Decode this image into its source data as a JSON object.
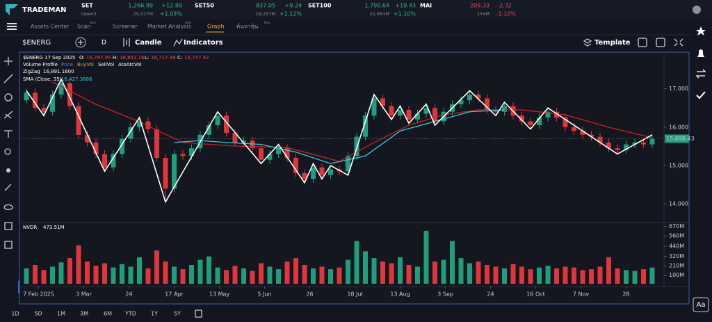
{
  "header": {
    "logo": "TRADEMAN",
    "tickers": [
      {
        "name": "SET",
        "value": "1,266.99",
        "change": "+12.89",
        "status": "Open2",
        "volume": "25,017M",
        "pct": "+1.03%"
      },
      {
        "name": "SET50",
        "value": "837.05",
        "change": "+9.24",
        "volume": "19,257M",
        "pct": "+1.12%"
      },
      {
        "name": "SET100",
        "value": "1,790.64",
        "change": "+19.43",
        "volume": "21,651M",
        "pct": "+1.10%"
      },
      {
        "name": "MAI",
        "value": "209.33",
        "change": "-2.32",
        "volume": "154M",
        "pct": "-1.10%"
      }
    ]
  },
  "nav": [
    {
      "label": "Assets Center"
    },
    {
      "label": "Scan",
      "badge": "New"
    },
    {
      "label": "Screener"
    },
    {
      "label": "Market Analysis",
      "badge": "New"
    },
    {
      "label": "Graph"
    },
    {
      "label": "ค้นหาหุ้น",
      "badge": "New"
    }
  ],
  "toolbar": {
    "symbol": "$ENERG",
    "interval": "D",
    "chart_type": "Candle",
    "indicators": "Indicators",
    "template": "Template"
  },
  "legend": {
    "symbol": "$ENERG",
    "date": "17 Sep 2025",
    "o_label": "O:",
    "o": "16,787.95",
    "h_label": "H:",
    "h": "16,891.16",
    "l_label": "L:",
    "l": "16,717.49",
    "c_label": "C:",
    "c": "16,747.42",
    "volume_profile": "Volume Profile",
    "price": "Price",
    "buy": "BuyVol",
    "sell": "SellVol",
    "atoatc": "AtoAtcVol",
    "zigzag": "ZigZag",
    "zigzag_value": "16,891.1600",
    "sma": "SMA (Close, 35)",
    "sma_value": "16,427.3686"
  },
  "chart_data": {
    "type": "candlestick",
    "up_color": "#1f9e7e",
    "down_color": "#e0353b",
    "xlim": [
      0,
      72
    ],
    "ylim": [
      13550,
      17900
    ],
    "yticks": [
      {
        "value": 14000,
        "label": "14,000"
      },
      {
        "value": 15000,
        "label": "15,000"
      },
      {
        "value": 16000,
        "label": "16,000"
      },
      {
        "value": 17000,
        "label": "17,000"
      }
    ],
    "xticks": [
      {
        "value": 1.4,
        "label": "7 Feb 2025"
      },
      {
        "value": 6.6,
        "label": "3 Mar"
      },
      {
        "value": 11.8,
        "label": "24"
      },
      {
        "value": 17,
        "label": "17 Apr"
      },
      {
        "value": 22.2,
        "label": "13 May"
      },
      {
        "value": 27.4,
        "label": "5 Jun"
      },
      {
        "value": 32.6,
        "label": "26"
      },
      {
        "value": 37.8,
        "label": "18 Jul"
      },
      {
        "value": 43,
        "label": "13 Aug"
      },
      {
        "value": 48.2,
        "label": "3 Sep"
      },
      {
        "value": 53.4,
        "label": "24"
      },
      {
        "value": 58.6,
        "label": "16 Oct"
      },
      {
        "value": 63.8,
        "label": "7 Nov"
      },
      {
        "value": 69,
        "label": "28"
      }
    ],
    "open": [
      16700,
      16900,
      16500,
      16400,
      16850,
      17150,
      16550,
      15800,
      15600,
      15300,
      14950,
      15300,
      15700,
      16000,
      16150,
      15950,
      15200,
      14400,
      15300,
      15250,
      15450,
      15800,
      16050,
      16300,
      15850,
      15600,
      15650,
      15450,
      15150,
      15300,
      15450,
      15200,
      14800,
      14650,
      14950,
      14750,
      14900,
      14850,
      15250,
      15750,
      16300,
      16750,
      16550,
      16300,
      16450,
      16200,
      16350,
      16500,
      16150,
      16400,
      16600,
      16700,
      16850,
      16750,
      16450,
      16400,
      16550,
      16300,
      16150,
      16050,
      16250,
      16400,
      16250,
      16000,
      15900,
      15800,
      15750,
      15600,
      15450,
      15400,
      15550,
      15600,
      15550
    ],
    "high": [
      17000,
      17000,
      16600,
      16950,
      17250,
      17250,
      16650,
      15900,
      15700,
      15400,
      15400,
      15800,
      16100,
      16250,
      16250,
      16050,
      15300,
      15400,
      15400,
      15550,
      15900,
      16150,
      16400,
      16400,
      15950,
      15750,
      15750,
      15550,
      15400,
      15550,
      15550,
      15300,
      14900,
      15050,
      15050,
      15000,
      15000,
      15350,
      15850,
      16400,
      16850,
      16850,
      16650,
      16550,
      16550,
      16450,
      16600,
      16600,
      16500,
      16700,
      16800,
      16950,
      16950,
      16850,
      16550,
      16650,
      16650,
      16400,
      16250,
      16350,
      16500,
      16500,
      16350,
      16100,
      16000,
      15900,
      15850,
      15700,
      15550,
      15650,
      15700,
      15700,
      15800
    ],
    "low": [
      16600,
      16400,
      16300,
      16300,
      16750,
      16450,
      15700,
      15500,
      15200,
      14850,
      14850,
      15200,
      15600,
      15900,
      15850,
      15100,
      14050,
      14300,
      15150,
      15150,
      15350,
      15700,
      15950,
      15750,
      15500,
      15500,
      15350,
      15050,
      15050,
      15200,
      15100,
      14700,
      14550,
      14550,
      14650,
      14650,
      14750,
      14750,
      15150,
      15650,
      16200,
      16450,
      16200,
      16200,
      16100,
      16100,
      16250,
      16050,
      16050,
      16300,
      16500,
      16600,
      16650,
      16350,
      16300,
      16300,
      16200,
      16050,
      15950,
      15950,
      16150,
      16150,
      15900,
      15800,
      15700,
      15650,
      15500,
      15350,
      15300,
      15300,
      15450,
      15450,
      15450
    ],
    "close": [
      16900,
      16500,
      16400,
      16850,
      17150,
      16550,
      15800,
      15600,
      15300,
      14950,
      15300,
      15700,
      16000,
      16150,
      15950,
      15200,
      14400,
      15300,
      15250,
      15450,
      15800,
      16050,
      16300,
      15850,
      15600,
      15650,
      15450,
      15150,
      15300,
      15450,
      15200,
      14800,
      14650,
      14950,
      14750,
      14900,
      14850,
      15250,
      15750,
      16300,
      16750,
      16550,
      16300,
      16450,
      16200,
      16350,
      16500,
      16150,
      16400,
      16600,
      16700,
      16850,
      16750,
      16450,
      16400,
      16550,
      16300,
      16150,
      16050,
      16250,
      16400,
      16250,
      16000,
      15900,
      15800,
      15750,
      15600,
      15450,
      15400,
      15550,
      15600,
      15550,
      15698.43
    ],
    "last_label": "15,698.43",
    "lines": [
      {
        "color": "#d11f25",
        "x": [
          3,
          8,
          13,
          18,
          24,
          30,
          36,
          40,
          44,
          48,
          52,
          57,
          62,
          67,
          72
        ],
        "values": [
          17175,
          16595,
          16142,
          15598,
          15508,
          15470,
          15108,
          15600,
          16050,
          16323,
          16450,
          16450,
          16323,
          15997,
          15725
        ]
      },
      {
        "color": "#26d0df",
        "x": [
          17,
          20,
          23,
          27,
          31,
          35,
          39,
          43,
          47,
          51,
          55
        ],
        "values": [
          15600,
          15650,
          15600,
          15550,
          15350,
          15050,
          15250,
          15900,
          16150,
          16400,
          16450
        ]
      },
      {
        "color": "#ffffff",
        "x": [
          0,
          2,
          4,
          9,
          13,
          16,
          22,
          27,
          29,
          32,
          33,
          34,
          35,
          37,
          40,
          42,
          43,
          44,
          46,
          47,
          51,
          54,
          55,
          58,
          60,
          68,
          72
        ],
        "values": [
          16950,
          16300,
          17250,
          14850,
          16250,
          14050,
          16400,
          15050,
          15550,
          14550,
          15050,
          14650,
          15000,
          14750,
          16850,
          16200,
          16550,
          16100,
          16600,
          16050,
          16950,
          16300,
          16650,
          15950,
          16500,
          15300,
          15800
        ]
      }
    ],
    "volume": {
      "title": "NVDR",
      "last": "473.51M",
      "ylim": [
        0,
        700
      ],
      "yticks": [
        {
          "value": 100,
          "label": "100M"
        },
        {
          "value": 210,
          "label": "210M"
        },
        {
          "value": 320,
          "label": "320M"
        },
        {
          "value": 440,
          "label": "440M"
        },
        {
          "value": 560,
          "label": "560M"
        },
        {
          "value": 670,
          "label": "670M"
        }
      ],
      "values": [
        180,
        220,
        160,
        200,
        250,
        300,
        450,
        260,
        210,
        240,
        190,
        230,
        200,
        310,
        180,
        390,
        260,
        200,
        170,
        220,
        280,
        320,
        190,
        160,
        210,
        180,
        150,
        240,
        200,
        170,
        260,
        300,
        220,
        180,
        200,
        170,
        190,
        280,
        500,
        380,
        300,
        260,
        240,
        310,
        220,
        200,
        620,
        260,
        280,
        500,
        300,
        240,
        260,
        220,
        200,
        180,
        230,
        200,
        170,
        190,
        210,
        180,
        200,
        190,
        160,
        170,
        200,
        310,
        180,
        160,
        150,
        170,
        190
      ]
    }
  },
  "range_buttons": [
    "1D",
    "5D",
    "1M",
    "3M",
    "6M",
    "YTD",
    "1Y",
    "5Y"
  ],
  "font_button": "Aa"
}
